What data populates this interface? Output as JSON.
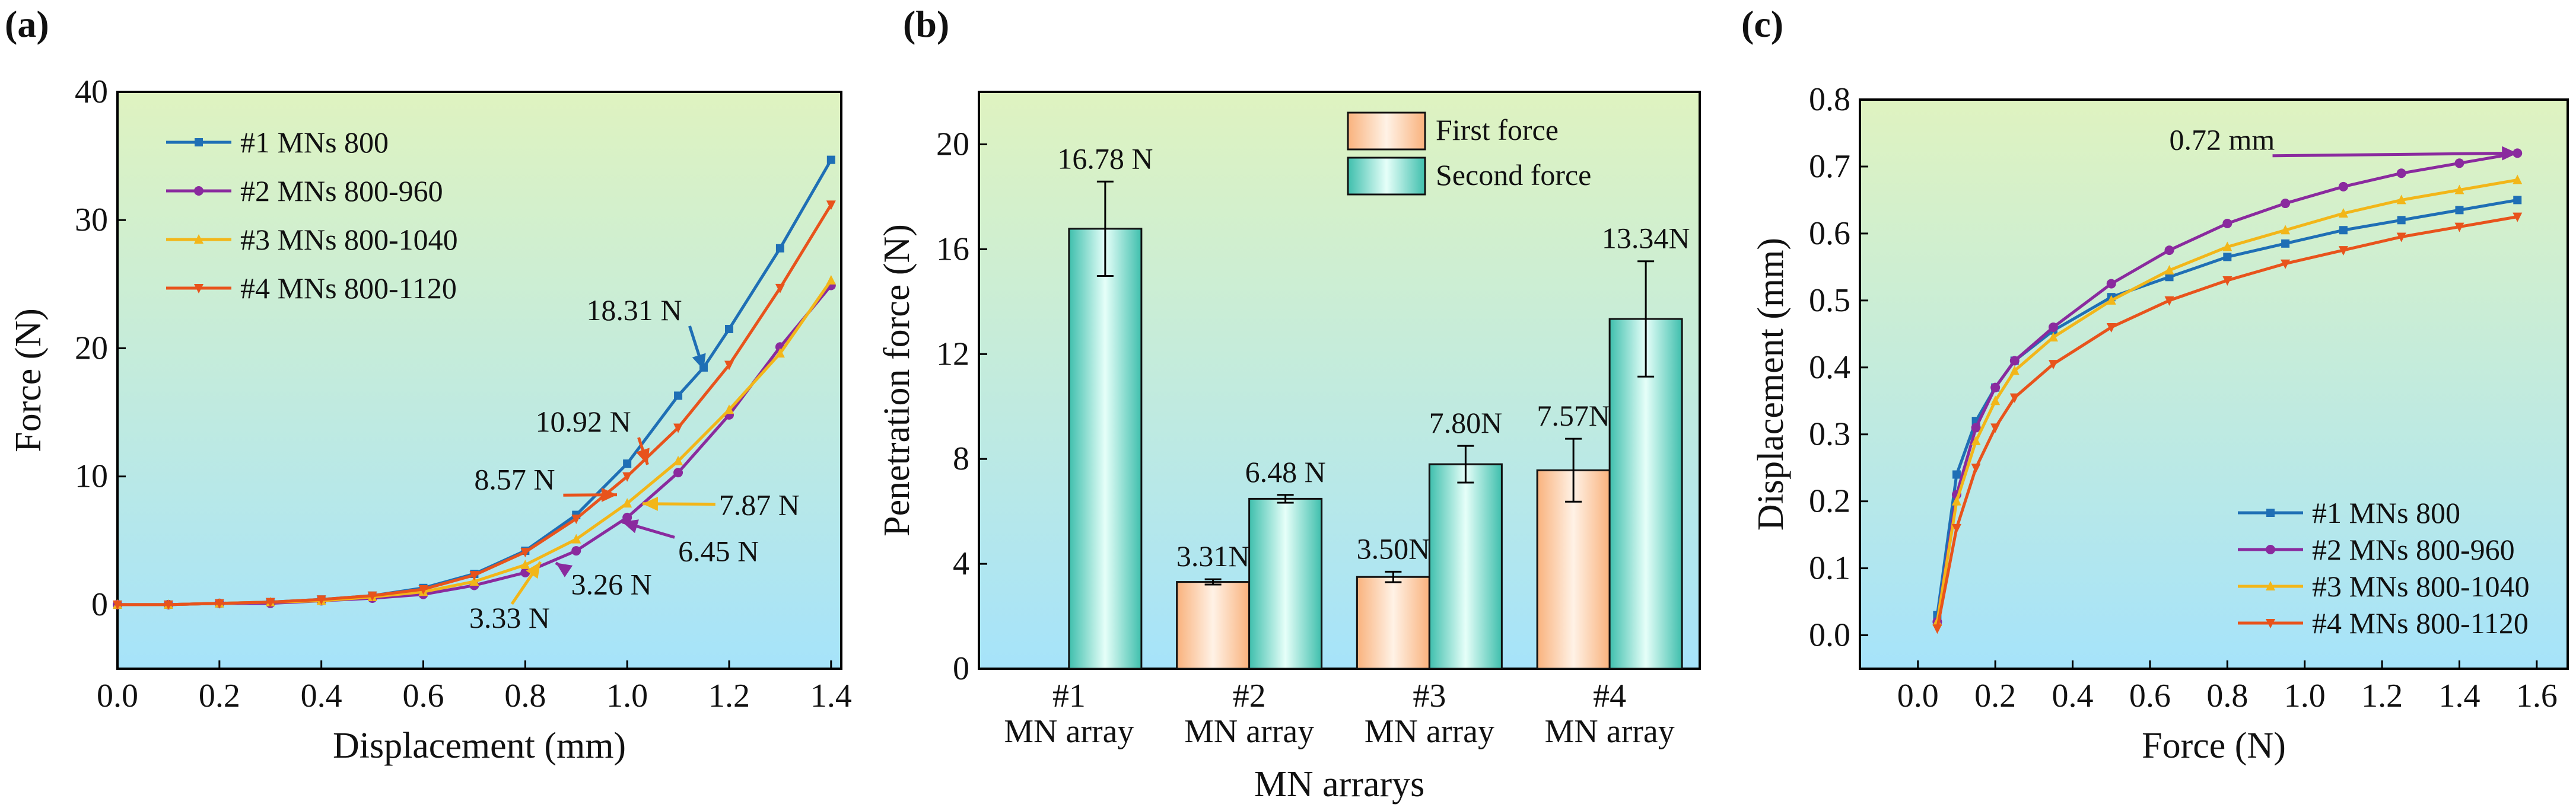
{
  "colors": {
    "s1": "#1f6fb5",
    "s2": "#8a2a9e",
    "s3": "#f2b619",
    "s4": "#e8531c",
    "bg_top": "#dff3c0",
    "bg_bottom": "#a6e3fa",
    "bar_first": "#f9b27d",
    "bar_second": "#3fbfad"
  },
  "chart_data": [
    {
      "panel": "(a)",
      "type": "line",
      "title": "",
      "xlabel": "Displacement (mm)",
      "ylabel": "Force (N)",
      "xlim": [
        0,
        1.42
      ],
      "ylim": [
        -5,
        40
      ],
      "xticks": [
        "0.0",
        "0.2",
        "0.4",
        "0.6",
        "0.8",
        "1.0",
        "1.2",
        "1.4"
      ],
      "yticks": [
        "0",
        "10",
        "20",
        "30",
        "40"
      ],
      "legend_position": "top-left",
      "series": [
        {
          "name": "#1 MNs 800",
          "color_key": "s1",
          "marker": "square",
          "x": [
            0,
            0.1,
            0.2,
            0.3,
            0.4,
            0.5,
            0.6,
            0.7,
            0.8,
            0.9,
            1.0,
            1.1,
            1.15,
            1.2,
            1.3,
            1.4
          ],
          "y": [
            0,
            0,
            0.1,
            0.2,
            0.4,
            0.7,
            1.3,
            2.4,
            4.2,
            7.0,
            11.0,
            16.3,
            18.5,
            21.5,
            27.8,
            34.7
          ]
        },
        {
          "name": "#2 MNs 800-960",
          "color_key": "s2",
          "marker": "circle",
          "x": [
            0,
            0.1,
            0.2,
            0.3,
            0.4,
            0.5,
            0.6,
            0.7,
            0.8,
            0.9,
            1.0,
            1.1,
            1.2,
            1.3,
            1.4
          ],
          "y": [
            0,
            0,
            0.1,
            0.1,
            0.3,
            0.5,
            0.8,
            1.5,
            2.5,
            4.2,
            6.8,
            10.3,
            14.8,
            20.1,
            24.9
          ]
        },
        {
          "name": "#3 MNs 800-1040",
          "color_key": "s3",
          "marker": "triangle-up",
          "x": [
            0,
            0.1,
            0.2,
            0.3,
            0.4,
            0.5,
            0.6,
            0.7,
            0.8,
            0.9,
            1.0,
            1.1,
            1.2,
            1.3,
            1.4
          ],
          "y": [
            0,
            0,
            0.1,
            0.2,
            0.3,
            0.6,
            1.0,
            1.8,
            3.1,
            5.1,
            7.9,
            11.2,
            15.2,
            19.6,
            25.3
          ]
        },
        {
          "name": "#4 MNs 800-1120",
          "color_key": "s4",
          "marker": "triangle-down",
          "x": [
            0,
            0.1,
            0.2,
            0.3,
            0.4,
            0.5,
            0.6,
            0.7,
            0.8,
            0.9,
            1.0,
            1.1,
            1.2,
            1.3,
            1.4
          ],
          "y": [
            0,
            0,
            0.1,
            0.2,
            0.4,
            0.7,
            1.2,
            2.3,
            4.1,
            6.7,
            10.0,
            13.8,
            18.7,
            24.7,
            31.2
          ]
        }
      ],
      "annotations": [
        {
          "text": "18.31 N",
          "color_key": "s1",
          "point": [
            1.15,
            18.31
          ],
          "label_at": [
            0.92,
            22.2
          ]
        },
        {
          "text": "10.92 N",
          "color_key": "s4",
          "point": [
            1.04,
            10.92
          ],
          "label_at": [
            0.82,
            13.5
          ]
        },
        {
          "text": "8.57 N",
          "color_key": "s4",
          "point": [
            0.98,
            8.57
          ],
          "label_at": [
            0.7,
            9.0
          ]
        },
        {
          "text": "7.87 N",
          "color_key": "s3",
          "point": [
            1.03,
            7.87
          ],
          "label_at": [
            1.18,
            7.0
          ]
        },
        {
          "text": "6.45 N",
          "color_key": "s2",
          "point": [
            0.99,
            6.45
          ],
          "label_at": [
            1.1,
            3.4
          ]
        },
        {
          "text": "3.26 N",
          "color_key": "s2",
          "point": [
            0.86,
            3.26
          ],
          "label_at": [
            0.89,
            0.8
          ]
        },
        {
          "text": "3.33 N",
          "color_key": "s3",
          "point": [
            0.83,
            3.33
          ],
          "label_at": [
            0.69,
            -1.8
          ]
        }
      ]
    },
    {
      "panel": "(b)",
      "type": "bar",
      "title": "",
      "xlabel": "MN arrarys",
      "ylabel": "Penetration force (N)",
      "ylim": [
        0,
        22
      ],
      "yticks": [
        "0",
        "4",
        "8",
        "12",
        "16",
        "20"
      ],
      "categories": [
        [
          "#1",
          "MN array"
        ],
        [
          "#2",
          "MN array"
        ],
        [
          "#3",
          "MN array"
        ],
        [
          "#4",
          "MN array"
        ]
      ],
      "legend_position": "top-center",
      "series": [
        {
          "name": "First force",
          "color_key": "bar_first",
          "values": [
            null,
            3.31,
            3.5,
            7.57
          ],
          "errors": [
            null,
            0.1,
            0.2,
            1.2
          ],
          "labels": [
            null,
            "3.31N",
            "3.50N",
            "7.57N"
          ]
        },
        {
          "name": "Second force",
          "color_key": "bar_second",
          "values": [
            16.78,
            6.48,
            7.8,
            13.34
          ],
          "errors": [
            1.8,
            0.15,
            0.7,
            2.2
          ],
          "labels": [
            "16.78 N",
            "6.48 N",
            "7.80N",
            "13.34N"
          ]
        }
      ]
    },
    {
      "panel": "(c)",
      "type": "line",
      "title": "",
      "xlabel": "Force (N)",
      "ylabel": "Displacement (mm)",
      "xlim": [
        -0.15,
        1.68
      ],
      "ylim": [
        -0.05,
        0.8
      ],
      "xticks": [
        "0.0",
        "0.2",
        "0.4",
        "0.6",
        "0.8",
        "1.0",
        "1.2",
        "1.4",
        "1.6"
      ],
      "yticks": [
        "0.0",
        "0.1",
        "0.2",
        "0.3",
        "0.4",
        "0.5",
        "0.6",
        "0.7",
        "0.8"
      ],
      "legend_position": "bottom-right",
      "series": [
        {
          "name": "#1  MNs 800",
          "color_key": "s1",
          "marker": "square",
          "x": [
            0.05,
            0.1,
            0.15,
            0.2,
            0.25,
            0.35,
            0.5,
            0.65,
            0.8,
            0.95,
            1.1,
            1.25,
            1.4,
            1.55
          ],
          "y": [
            0.03,
            0.24,
            0.32,
            0.37,
            0.41,
            0.455,
            0.505,
            0.535,
            0.565,
            0.585,
            0.605,
            0.62,
            0.635,
            0.65
          ]
        },
        {
          "name": "#2  MNs 800-960",
          "color_key": "s2",
          "marker": "circle",
          "x": [
            0.05,
            0.1,
            0.15,
            0.2,
            0.25,
            0.35,
            0.5,
            0.65,
            0.8,
            0.95,
            1.1,
            1.25,
            1.4,
            1.55
          ],
          "y": [
            0.02,
            0.21,
            0.31,
            0.37,
            0.41,
            0.46,
            0.525,
            0.575,
            0.615,
            0.645,
            0.67,
            0.69,
            0.705,
            0.72
          ]
        },
        {
          "name": "#3  MNs 800-1040",
          "color_key": "s3",
          "marker": "triangle-up",
          "x": [
            0.05,
            0.1,
            0.15,
            0.2,
            0.25,
            0.35,
            0.5,
            0.65,
            0.8,
            0.95,
            1.1,
            1.25,
            1.4,
            1.55
          ],
          "y": [
            0.02,
            0.2,
            0.29,
            0.35,
            0.395,
            0.445,
            0.5,
            0.545,
            0.58,
            0.605,
            0.63,
            0.65,
            0.665,
            0.68
          ]
        },
        {
          "name": "#4  MNs 800-1120",
          "color_key": "s4",
          "marker": "triangle-down",
          "x": [
            0.05,
            0.1,
            0.15,
            0.2,
            0.25,
            0.35,
            0.5,
            0.65,
            0.8,
            0.95,
            1.1,
            1.25,
            1.4,
            1.55
          ],
          "y": [
            0.01,
            0.16,
            0.25,
            0.31,
            0.355,
            0.405,
            0.46,
            0.5,
            0.53,
            0.555,
            0.575,
            0.595,
            0.61,
            0.625
          ]
        }
      ],
      "annotations": [
        {
          "text": "0.72 mm",
          "color_key": "s2",
          "point": [
            1.55,
            0.72
          ],
          "label_at": [
            0.65,
            0.725
          ]
        }
      ]
    }
  ]
}
